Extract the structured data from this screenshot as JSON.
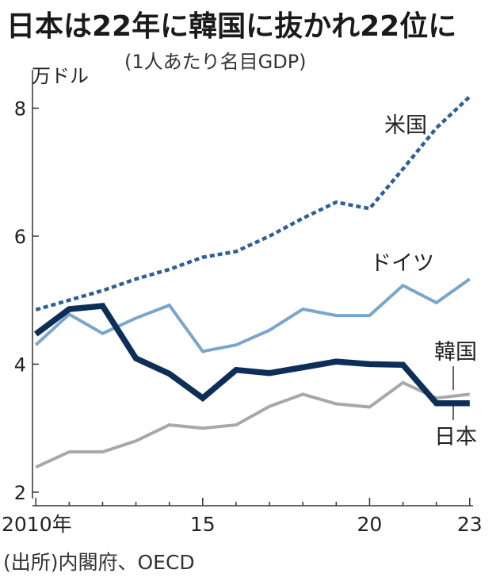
{
  "title": "日本は22年に韓国に抜かれ22位に",
  "subtitle": "(1人あたり名目GDP)",
  "source": "(出所)内閣府、OECD",
  "chart_data": {
    "type": "line",
    "ylabel": "万ドル",
    "x": [
      2010,
      2011,
      2012,
      2013,
      2014,
      2015,
      2016,
      2017,
      2018,
      2019,
      2020,
      2021,
      2022,
      2023
    ],
    "x_tick_labels": [
      {
        "x": 2010,
        "label": "2010年"
      },
      {
        "x": 2015,
        "label": "15"
      },
      {
        "x": 2020,
        "label": "20"
      },
      {
        "x": 2023,
        "label": "23"
      }
    ],
    "y_ticks": [
      2,
      4,
      6,
      8
    ],
    "ylim": [
      1.9,
      8.6
    ],
    "xlim": [
      2009.9,
      2023.1
    ],
    "series": [
      {
        "name": "米国",
        "style": "dotted",
        "color": "#2f5f96",
        "values": [
          4.85,
          5.0,
          5.15,
          5.33,
          5.48,
          5.67,
          5.76,
          6.0,
          6.28,
          6.53,
          6.43,
          7.05,
          7.69,
          8.18
        ]
      },
      {
        "name": "ドイツ",
        "style": "solid",
        "color": "#7aa6cb",
        "values": [
          4.3,
          4.78,
          4.48,
          4.72,
          4.92,
          4.2,
          4.3,
          4.53,
          4.86,
          4.76,
          4.76,
          5.23,
          4.96,
          5.33
        ]
      },
      {
        "name": "日本",
        "style": "bold",
        "color": "#0d2f57",
        "values": [
          4.47,
          4.86,
          4.91,
          4.09,
          3.85,
          3.47,
          3.91,
          3.86,
          3.95,
          4.04,
          4.0,
          3.99,
          3.39,
          3.39
        ]
      },
      {
        "name": "韓国",
        "style": "solid",
        "color": "#a8a8a8",
        "values": [
          2.39,
          2.63,
          2.63,
          2.8,
          3.05,
          3.0,
          3.05,
          3.34,
          3.53,
          3.38,
          3.33,
          3.71,
          3.47,
          3.53
        ]
      }
    ],
    "grid": false,
    "legend": "inline labels"
  }
}
